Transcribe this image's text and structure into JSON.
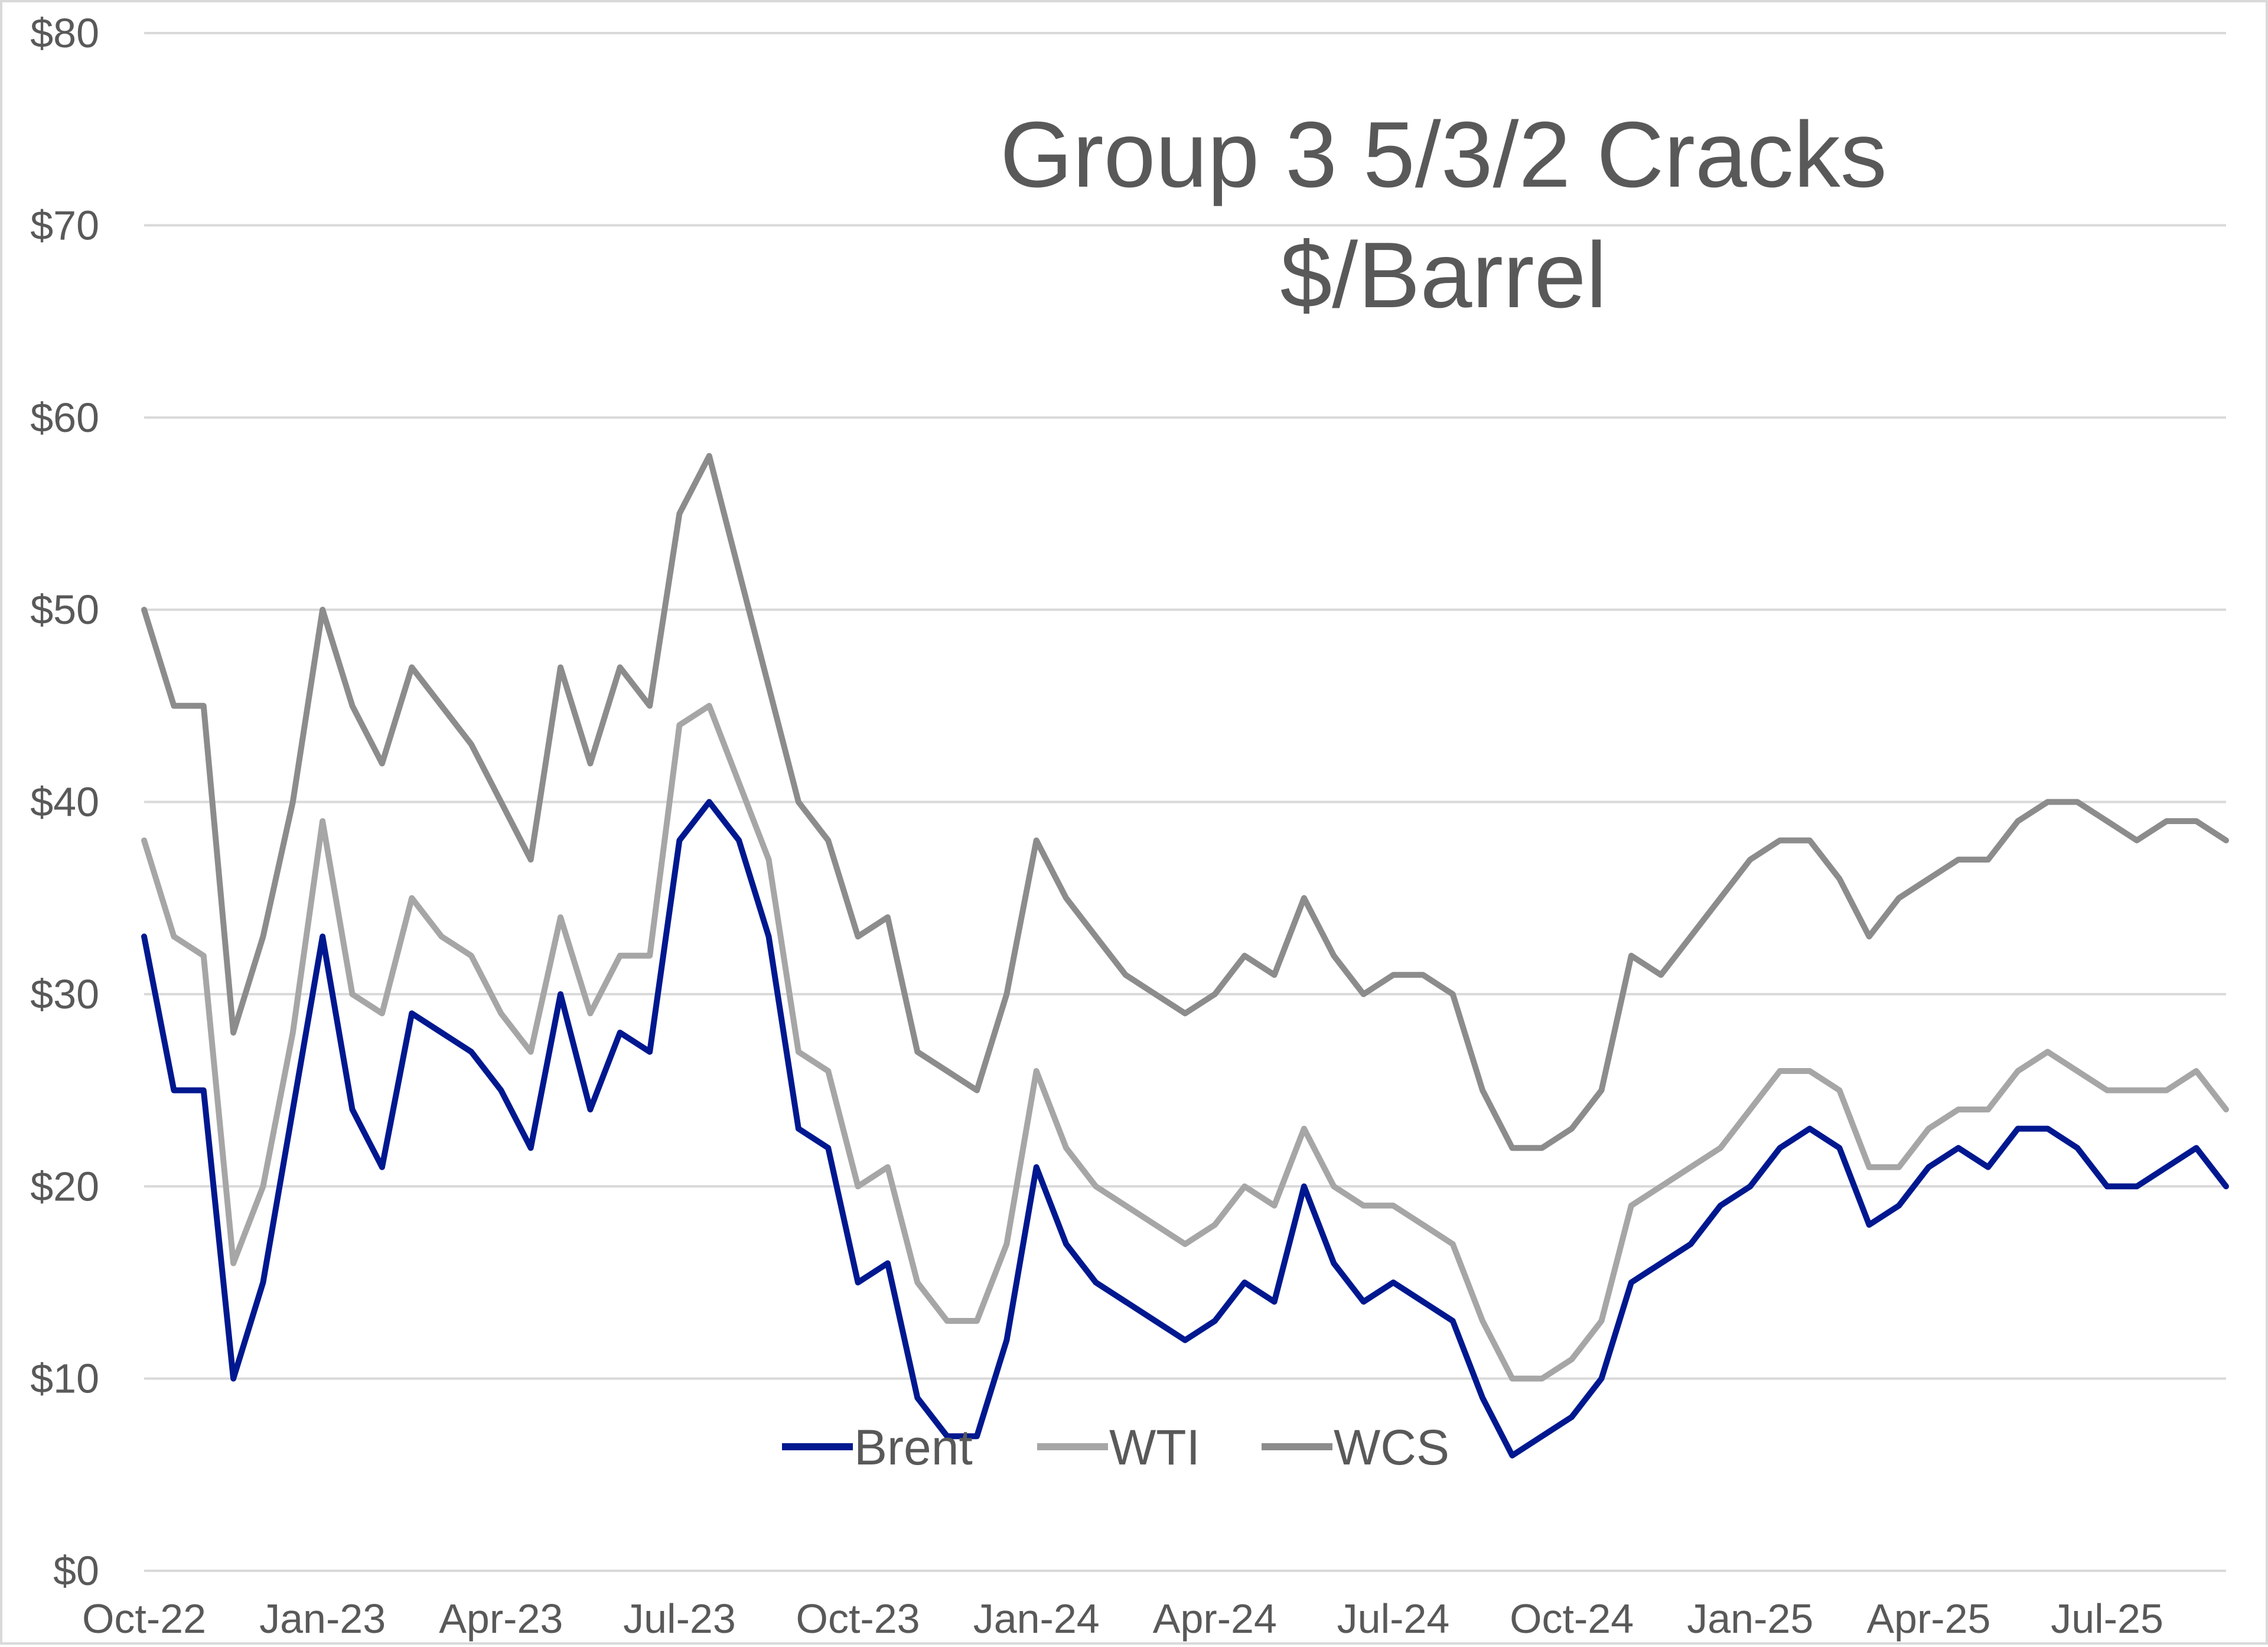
{
  "chart_data": {
    "type": "line",
    "title": [
      "Group 3 5/3/2 Cracks",
      "$/Barrel"
    ],
    "xlabel": "",
    "ylabel": "",
    "ylim": [
      0,
      80
    ],
    "y_ticks": [
      "$0",
      "$10",
      "$20",
      "$30",
      "$40",
      "$50",
      "$60",
      "$70",
      "$80"
    ],
    "y_tick_values": [
      0,
      10,
      20,
      30,
      40,
      50,
      60,
      70,
      80
    ],
    "x_ticks": [
      "Oct-22",
      "Jan-23",
      "Apr-23",
      "Jul-23",
      "Oct-23",
      "Jan-24",
      "Apr-24",
      "Jul-24",
      "Oct-24",
      "Jan-25",
      "Apr-25",
      "Jul-25"
    ],
    "x_range_months": [
      0,
      35
    ],
    "grid": true,
    "legend_position": "bottom-center",
    "x_months": [
      0,
      0.5,
      1,
      1.5,
      2,
      2.5,
      3,
      3.5,
      4,
      4.5,
      5,
      5.5,
      6,
      6.5,
      7,
      7.5,
      8,
      8.5,
      9,
      9.5,
      10,
      10.5,
      11,
      11.5,
      12,
      12.5,
      13,
      13.5,
      14,
      14.5,
      15,
      15.5,
      16,
      16.5,
      17,
      17.5,
      18,
      18.5,
      19,
      19.5,
      20,
      20.5,
      21,
      21.5,
      22,
      22.5,
      23,
      23.5,
      24,
      24.5,
      25,
      25.5,
      26,
      26.5,
      27,
      27.5,
      28,
      28.5,
      29,
      29.5,
      30,
      30.5,
      31,
      31.5,
      32,
      32.5,
      33,
      33.5,
      34,
      34.5,
      35
    ],
    "series": [
      {
        "name": "Brent",
        "color": "#00188f",
        "values": [
          33,
          25,
          25,
          10,
          15,
          24,
          33,
          24,
          21,
          29,
          28,
          27,
          25,
          22,
          30,
          24,
          28,
          27,
          38,
          40,
          38,
          33,
          23,
          22,
          15,
          16,
          9,
          7,
          7,
          12,
          21,
          17,
          15,
          14,
          13,
          12,
          13,
          15,
          14,
          20,
          16,
          14,
          15,
          14,
          13,
          9,
          6,
          7,
          8,
          10,
          15,
          16,
          17,
          19,
          20,
          22,
          23,
          22,
          18,
          19,
          21,
          22,
          21,
          23,
          23,
          22,
          20,
          20,
          21,
          22,
          20
        ]
      },
      {
        "name": "WTI",
        "color": "#a6a6a6",
        "values": [
          38,
          33,
          32,
          16,
          20,
          28,
          39,
          30,
          29,
          35,
          33,
          32,
          29,
          27,
          34,
          29,
          32,
          32,
          44,
          45,
          41,
          37,
          27,
          26,
          20,
          21,
          15,
          13,
          13,
          17,
          26,
          22,
          20,
          19,
          18,
          17,
          18,
          20,
          19,
          23,
          20,
          19,
          19,
          18,
          17,
          13,
          10,
          10,
          11,
          13,
          19,
          20,
          21,
          22,
          24,
          26,
          26,
          25,
          21,
          21,
          23,
          24,
          24,
          26,
          27,
          26,
          25,
          25,
          25,
          26,
          24
        ]
      },
      {
        "name": "WCS",
        "color": "#8c8c8c",
        "values": [
          50,
          45,
          45,
          28,
          33,
          40,
          50,
          45,
          42,
          47,
          45,
          43,
          40,
          37,
          47,
          42,
          47,
          45,
          55,
          58,
          52,
          46,
          40,
          38,
          33,
          34,
          27,
          26,
          25,
          30,
          38,
          35,
          33,
          31,
          30,
          29,
          30,
          32,
          31,
          35,
          32,
          30,
          31,
          31,
          30,
          25,
          22,
          22,
          23,
          25,
          32,
          31,
          33,
          35,
          37,
          38,
          38,
          36,
          33,
          35,
          36,
          37,
          37,
          39,
          40,
          40,
          39,
          38,
          39,
          39,
          38
        ]
      }
    ]
  }
}
